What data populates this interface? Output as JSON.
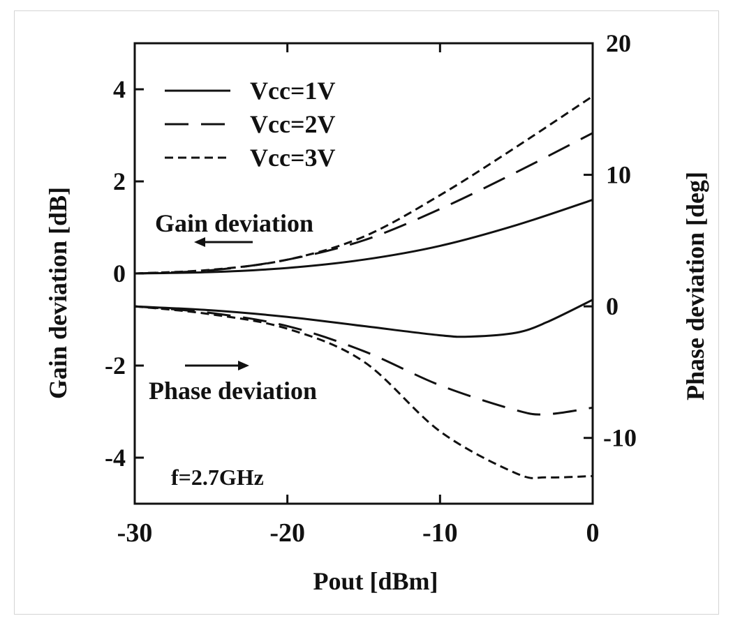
{
  "chart_data": {
    "type": "line",
    "xlabel": "Pout [dBm]",
    "ylabel_left": "Gain deviation [dB]",
    "ylabel_right": "Phase deviation [deg]",
    "xlim": [
      -30,
      0
    ],
    "ylim_left": [
      -5,
      5
    ],
    "ylim_right": [
      -15,
      20
    ],
    "x_ticks": [
      -30,
      -20,
      -10,
      0
    ],
    "y_ticks_left": [
      4,
      2,
      0,
      -2,
      -4
    ],
    "y_ticks_right": [
      20,
      10,
      0,
      -10
    ],
    "x_tick_labels": [
      "-30",
      "-20",
      "-10",
      "0"
    ],
    "y_tick_labels_left": [
      "4",
      "2",
      "0",
      "-2",
      "-4"
    ],
    "y_tick_labels_right": [
      "20",
      "10",
      "0",
      "-10"
    ],
    "grid": false,
    "legend_position": "top-left",
    "annotations": {
      "gain": "Gain deviation",
      "phase": "Phase deviation",
      "freq": "f=2.7GHz"
    },
    "series": [
      {
        "name": "Vcc=1V",
        "group": "gain",
        "axis": "left",
        "dash": "solid",
        "x": [
          -30,
          -25,
          -20,
          -15,
          -10,
          -5,
          0
        ],
        "y": [
          0.0,
          0.03,
          0.12,
          0.3,
          0.6,
          1.05,
          1.6
        ]
      },
      {
        "name": "Vcc=2V",
        "group": "gain",
        "axis": "left",
        "dash": "long",
        "x": [
          -30,
          -25,
          -20,
          -15,
          -10,
          -5,
          0
        ],
        "y": [
          0.0,
          0.07,
          0.3,
          0.72,
          1.4,
          2.2,
          3.05
        ]
      },
      {
        "name": "Vcc=3V",
        "group": "gain",
        "axis": "left",
        "dash": "short",
        "x": [
          -30,
          -25,
          -20,
          -15,
          -10,
          -5,
          0
        ],
        "y": [
          0.0,
          0.08,
          0.3,
          0.8,
          1.7,
          2.75,
          3.85
        ]
      },
      {
        "name": "Vcc=1V",
        "group": "phase",
        "axis": "right",
        "dash": "solid",
        "x": [
          -30,
          -25,
          -20,
          -15,
          -10,
          -8,
          -5,
          -3,
          0
        ],
        "y": [
          0.0,
          -0.3,
          -0.8,
          -1.5,
          -2.2,
          -2.3,
          -2.0,
          -1.2,
          0.5
        ]
      },
      {
        "name": "Vcc=2V",
        "group": "phase",
        "axis": "right",
        "dash": "long",
        "x": [
          -30,
          -25,
          -20,
          -15,
          -10,
          -5,
          -3,
          0
        ],
        "y": [
          0.0,
          -0.5,
          -1.5,
          -3.4,
          -6.0,
          -7.9,
          -8.2,
          -7.7
        ]
      },
      {
        "name": "Vcc=3V",
        "group": "phase",
        "axis": "right",
        "dash": "short",
        "x": [
          -30,
          -25,
          -20,
          -15,
          -10,
          -5,
          -3,
          0
        ],
        "y": [
          0.0,
          -0.6,
          -1.7,
          -4.2,
          -9.5,
          -12.7,
          -13.0,
          -12.9
        ]
      }
    ]
  }
}
